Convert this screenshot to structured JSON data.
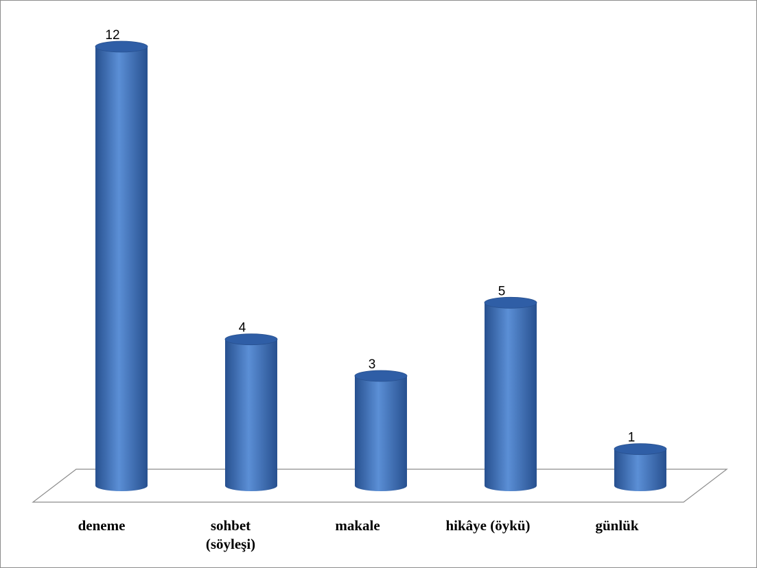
{
  "chart_data": {
    "type": "bar",
    "style": "3d-cylinder",
    "categories": [
      [
        "deneme"
      ],
      [
        "sohbet",
        "(söyleşi)"
      ],
      [
        "makale"
      ],
      [
        "hikâye (öykü)"
      ],
      [
        "günlük"
      ]
    ],
    "values": [
      12,
      4,
      3,
      5,
      1
    ],
    "data_labels": [
      "12",
      "4",
      "3",
      "5",
      "1"
    ],
    "ylim": [
      0,
      12
    ],
    "grid": false,
    "legend": "none",
    "colors": {
      "bar_light": "#5b8fd6",
      "bar_mid": "#3f72bd",
      "bar_dark": "#27508f",
      "bar_top": "#2f5ea6",
      "floor_stroke": "#8c8c8c",
      "frame": "#8c8c8c"
    }
  }
}
